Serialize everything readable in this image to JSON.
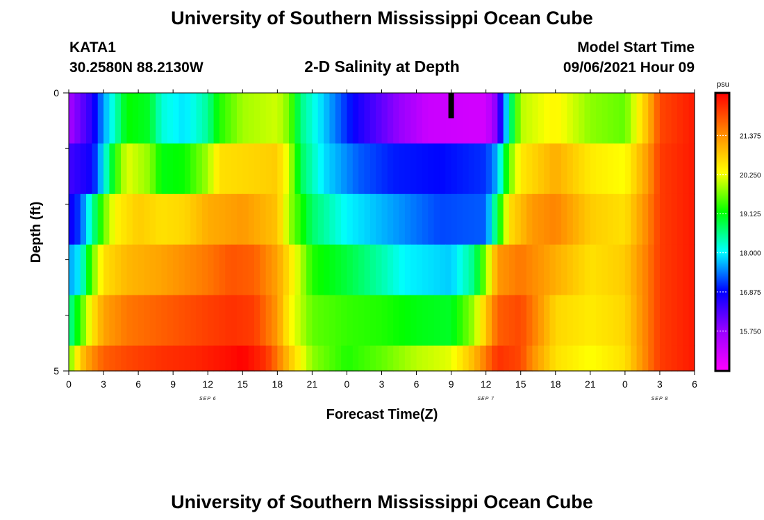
{
  "header": {
    "title": "University of Southern Mississippi Ocean Cube",
    "footer_title": "University of Southern Mississippi Ocean Cube",
    "station": "KATA1",
    "coords": "30.2580N  88.2130W",
    "subtitle": "2-D Salinity at Depth",
    "model_label": "Model Start Time",
    "model_time": "09/06/2021 Hour 09"
  },
  "colors": {
    "scale": [
      "#ff00ff",
      "#9a00ff",
      "#0000ff",
      "#00ffff",
      "#00ff00",
      "#ffff00",
      "#ff8800",
      "#ff0000"
    ]
  },
  "chart_data": {
    "type": "heatmap",
    "title": "2-D Salinity at Depth",
    "xlabel": "Forecast Time(Z)",
    "ylabel": "Depth (ft)",
    "x_ticks": [
      "0",
      "3",
      "6",
      "9",
      "12",
      "15",
      "18",
      "21",
      "0",
      "3",
      "6",
      "9",
      "12",
      "15",
      "18",
      "21",
      "0",
      "3",
      "6"
    ],
    "x_range_hours": [
      0,
      54
    ],
    "day_labels": [
      {
        "label": "SEP 6",
        "hour": 12
      },
      {
        "label": "SEP 7",
        "hour": 36
      },
      {
        "label": "SEP 8",
        "hour": 51
      }
    ],
    "y_tick_labels": [
      {
        "label": "0",
        "depth": 0
      },
      {
        "label": "5",
        "depth": 5
      }
    ],
    "y_minor_ticks": [
      1,
      2,
      3,
      4
    ],
    "y_range": [
      0,
      5
    ],
    "colorbar": {
      "unit": "psu",
      "min": 14.6,
      "max": 22.6,
      "ticks": [
        "15.750",
        "16.875",
        "18.000",
        "19.125",
        "20.250",
        "21.375"
      ]
    },
    "missing_marker": {
      "hour": 33,
      "depth_range": [
        0,
        0.5
      ]
    },
    "layers": [
      {
        "depth_range": [
          0,
          1
        ],
        "points": [
          [
            0,
            15.6
          ],
          [
            2,
            16.6
          ],
          [
            3,
            17.6
          ],
          [
            4,
            18.3
          ],
          [
            5,
            19.2
          ],
          [
            7,
            19.0
          ],
          [
            8,
            18.2
          ],
          [
            10,
            17.9
          ],
          [
            12,
            18.5
          ],
          [
            13,
            19.3
          ],
          [
            15,
            19.9
          ],
          [
            18,
            20.1
          ],
          [
            19,
            19.7
          ],
          [
            20,
            18.6
          ],
          [
            22,
            17.8
          ],
          [
            25,
            16.7
          ],
          [
            28,
            15.9
          ],
          [
            31,
            15.2
          ],
          [
            36,
            15.1
          ],
          [
            37,
            16.0
          ],
          [
            38,
            18.4
          ],
          [
            39,
            20.0
          ],
          [
            42,
            20.4
          ],
          [
            45,
            19.8
          ],
          [
            48,
            19.6
          ],
          [
            50,
            21.0
          ],
          [
            51,
            22.0
          ],
          [
            54,
            22.4
          ]
        ]
      },
      {
        "depth_range": [
          1,
          2
        ],
        "points": [
          [
            0,
            16.4
          ],
          [
            2,
            16.8
          ],
          [
            3,
            18.0
          ],
          [
            4,
            19.3
          ],
          [
            5,
            20.2
          ],
          [
            7,
            19.8
          ],
          [
            8,
            19.1
          ],
          [
            10,
            19.2
          ],
          [
            12,
            19.9
          ],
          [
            13,
            20.6
          ],
          [
            18,
            20.8
          ],
          [
            19,
            20.1
          ],
          [
            20,
            18.8
          ],
          [
            22,
            17.9
          ],
          [
            25,
            17.3
          ],
          [
            28,
            17.0
          ],
          [
            32,
            16.9
          ],
          [
            36,
            17.1
          ],
          [
            37,
            17.7
          ],
          [
            38,
            19.6
          ],
          [
            39,
            20.5
          ],
          [
            42,
            21.1
          ],
          [
            45,
            20.5
          ],
          [
            48,
            20.3
          ],
          [
            50,
            21.3
          ],
          [
            51,
            22.1
          ],
          [
            54,
            22.4
          ]
        ]
      },
      {
        "depth_range": [
          2,
          3
        ],
        "points": [
          [
            0,
            16.7
          ],
          [
            1,
            17.2
          ],
          [
            2,
            18.4
          ],
          [
            3,
            19.6
          ],
          [
            4,
            20.4
          ],
          [
            6,
            20.8
          ],
          [
            8,
            20.6
          ],
          [
            10,
            20.7
          ],
          [
            12,
            21.1
          ],
          [
            15,
            21.3
          ],
          [
            18,
            20.9
          ],
          [
            19,
            19.9
          ],
          [
            21,
            18.7
          ],
          [
            24,
            18.0
          ],
          [
            27,
            17.7
          ],
          [
            32,
            17.2
          ],
          [
            36,
            17.3
          ],
          [
            37,
            18.9
          ],
          [
            38,
            20.6
          ],
          [
            40,
            21.3
          ],
          [
            42,
            21.5
          ],
          [
            45,
            20.8
          ],
          [
            48,
            20.6
          ],
          [
            50,
            21.5
          ],
          [
            51,
            22.1
          ],
          [
            54,
            22.4
          ]
        ]
      },
      {
        "depth_range": [
          3,
          4
        ],
        "points": [
          [
            0,
            17.6
          ],
          [
            1,
            18.0
          ],
          [
            2,
            19.6
          ],
          [
            3,
            20.6
          ],
          [
            5,
            21.0
          ],
          [
            8,
            21.2
          ],
          [
            12,
            21.6
          ],
          [
            14,
            21.9
          ],
          [
            16,
            21.8
          ],
          [
            18,
            21.2
          ],
          [
            20,
            20.0
          ],
          [
            21,
            19.3
          ],
          [
            24,
            18.9
          ],
          [
            27,
            18.4
          ],
          [
            29,
            18.0
          ],
          [
            33,
            17.8
          ],
          [
            35,
            18.6
          ],
          [
            36,
            19.8
          ],
          [
            37,
            21.3
          ],
          [
            39,
            21.6
          ],
          [
            42,
            21.1
          ],
          [
            45,
            20.6
          ],
          [
            48,
            20.8
          ],
          [
            50,
            21.6
          ],
          [
            51,
            22.1
          ],
          [
            54,
            22.4
          ]
        ]
      },
      {
        "depth_range": [
          4,
          5
        ],
        "points": [
          [
            0,
            18.4
          ],
          [
            1,
            19.4
          ],
          [
            2,
            20.5
          ],
          [
            3,
            21.2
          ],
          [
            5,
            21.6
          ],
          [
            8,
            21.8
          ],
          [
            11,
            22.0
          ],
          [
            14,
            22.2
          ],
          [
            16,
            22.1
          ],
          [
            18,
            21.3
          ],
          [
            19,
            20.4
          ],
          [
            21,
            19.6
          ],
          [
            24,
            19.4
          ],
          [
            27,
            19.3
          ],
          [
            30,
            19.1
          ],
          [
            33,
            19.0
          ],
          [
            35,
            19.9
          ],
          [
            37,
            21.8
          ],
          [
            39,
            22.0
          ],
          [
            40,
            21.6
          ],
          [
            42,
            20.7
          ],
          [
            45,
            20.5
          ],
          [
            48,
            20.7
          ],
          [
            50,
            21.6
          ],
          [
            51,
            22.1
          ],
          [
            54,
            22.4
          ]
        ]
      },
      {
        "depth_range": [
          5,
          5.5
        ],
        "points": [
          [
            0,
            19.6
          ],
          [
            1,
            20.8
          ],
          [
            2,
            21.4
          ],
          [
            3,
            21.8
          ],
          [
            5,
            22.0
          ],
          [
            8,
            22.2
          ],
          [
            11,
            22.3
          ],
          [
            14,
            22.5
          ],
          [
            15,
            22.6
          ],
          [
            17,
            22.2
          ],
          [
            18,
            21.6
          ],
          [
            19,
            20.9
          ],
          [
            21,
            19.8
          ],
          [
            24,
            19.3
          ],
          [
            27,
            19.6
          ],
          [
            30,
            20.0
          ],
          [
            33,
            20.2
          ],
          [
            35,
            21.0
          ],
          [
            37,
            22.2
          ],
          [
            39,
            22.0
          ],
          [
            40,
            21.4
          ],
          [
            42,
            20.6
          ],
          [
            45,
            20.3
          ],
          [
            48,
            20.6
          ],
          [
            50,
            21.6
          ],
          [
            51,
            22.1
          ],
          [
            54,
            22.4
          ]
        ]
      }
    ]
  }
}
